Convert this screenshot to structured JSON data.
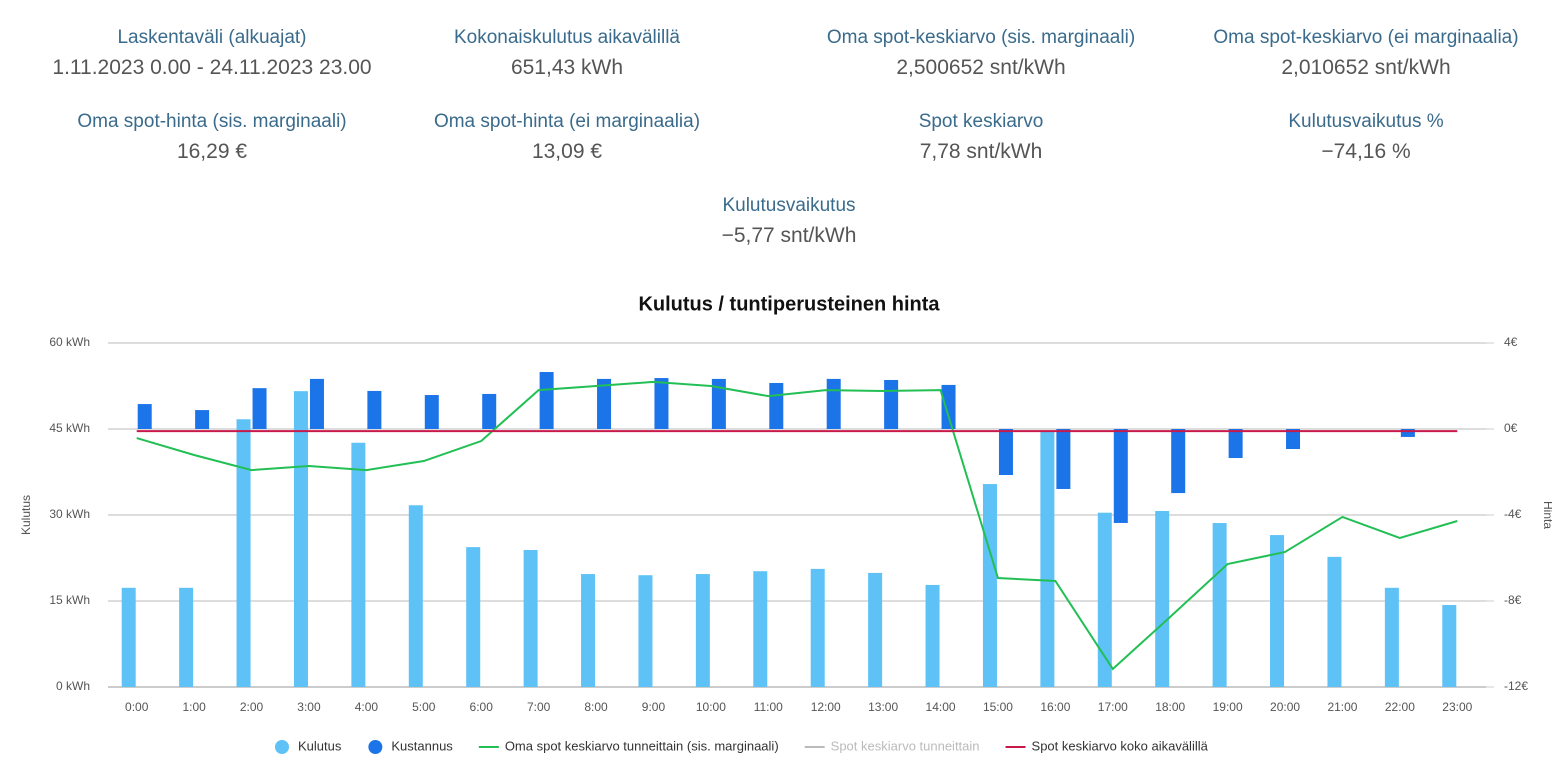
{
  "stats": [
    {
      "label": "Laskentaväli (alkuajat)",
      "value": "1.11.2023 0.00 - 24.11.2023 23.00"
    },
    {
      "label": "Kokonaiskulutus aikavälillä",
      "value": "651,43 kWh"
    },
    {
      "label": "Oma spot-keskiarvo (sis. marginaali)",
      "value": "2,500652 snt/kWh"
    },
    {
      "label": "Oma spot-keskiarvo (ei marginaalia)",
      "value": "2,010652 snt/kWh"
    },
    {
      "label": "Oma spot-hinta (sis. marginaali)",
      "value": "16,29 €"
    },
    {
      "label": "Oma spot-hinta (ei marginaalia)",
      "value": "13,09 €"
    },
    {
      "label": "Spot keskiarvo",
      "value": "7,78 snt/kWh"
    },
    {
      "label": "Kulutusvaikutus %",
      "value": "−74,16 %"
    },
    {
      "label": "Kulutusvaikutus",
      "value": "−5,77 snt/kWh"
    }
  ],
  "chart_data": {
    "type": "combo",
    "title": "Kulutus / tuntiperusteinen hinta",
    "y_label": "Kulutus",
    "y2_label": "Hinta",
    "categories": [
      "0:00",
      "1:00",
      "2:00",
      "3:00",
      "4:00",
      "5:00",
      "6:00",
      "7:00",
      "8:00",
      "9:00",
      "10:00",
      "11:00",
      "12:00",
      "13:00",
      "14:00",
      "15:00",
      "16:00",
      "17:00",
      "18:00",
      "19:00",
      "20:00",
      "21:00",
      "22:00",
      "23:00"
    ],
    "ylim": [
      0,
      60
    ],
    "yticks": [
      {
        "value": 0,
        "label": "0 kWh"
      },
      {
        "value": 15,
        "label": "15 kWh"
      },
      {
        "value": 30,
        "label": "30 kWh"
      },
      {
        "value": 45,
        "label": "45 kWh"
      },
      {
        "value": 60,
        "label": "60 kWh"
      }
    ],
    "y2lim": [
      -12,
      4
    ],
    "y2ticks": [
      {
        "value": -12,
        "label": "-12€"
      },
      {
        "value": -8,
        "label": "-8€"
      },
      {
        "value": -4,
        "label": "-4€"
      },
      {
        "value": 0,
        "label": "0€"
      },
      {
        "value": 4,
        "label": "4€"
      }
    ],
    "grid": true,
    "series": [
      {
        "name": "Kulutus",
        "type": "bar",
        "color": "#5ec2f7",
        "axis": "y",
        "values": [
          17.3,
          17.3,
          46.7,
          51.6,
          42.6,
          31.7,
          24.4,
          23.9,
          19.7,
          19.5,
          19.7,
          20.2,
          20.6,
          19.9,
          17.8,
          35.4,
          44.5,
          30.4,
          30.7,
          28.6,
          26.5,
          22.7,
          17.3,
          14.3
        ]
      },
      {
        "name": "Kustannus",
        "type": "bar",
        "color": "#1c74e9",
        "axis": "y2",
        "values": [
          1.16,
          0.88,
          1.9,
          2.33,
          1.77,
          1.58,
          1.63,
          2.65,
          2.33,
          2.37,
          2.33,
          2.14,
          2.33,
          2.28,
          2.05,
          -2.14,
          -2.79,
          -4.37,
          -2.98,
          -1.35,
          -0.93,
          0,
          -0.37,
          0
        ]
      },
      {
        "name": "Oma spot keskiarvo tunneittain (sis. marginaali)",
        "type": "line",
        "color": "#22bf55",
        "axis": "y2",
        "values": [
          -0.42,
          -1.21,
          -1.91,
          -1.72,
          -1.91,
          -1.49,
          -0.56,
          1.81,
          2.0,
          2.19,
          2.0,
          1.53,
          1.81,
          1.77,
          1.81,
          -6.93,
          -7.07,
          -11.16,
          -8.74,
          -6.28,
          -5.72,
          -4.09,
          -5.07,
          -4.28
        ]
      },
      {
        "name": "Spot keskiarvo tunneittain",
        "type": "line",
        "color": "#bbbbbb",
        "axis": "y2",
        "hidden": true
      },
      {
        "name": "Spot keskiarvo koko aikavälillä",
        "type": "line",
        "color": "#c8194b",
        "axis": "y2",
        "values": [
          -0.1,
          -0.1,
          -0.1,
          -0.1,
          -0.1,
          -0.1,
          -0.1,
          -0.1,
          -0.1,
          -0.1,
          -0.1,
          -0.1,
          -0.1,
          -0.1,
          -0.1,
          -0.1,
          -0.1,
          -0.1,
          -0.1,
          -0.1,
          -0.1,
          -0.1,
          -0.1,
          -0.1
        ]
      }
    ]
  }
}
